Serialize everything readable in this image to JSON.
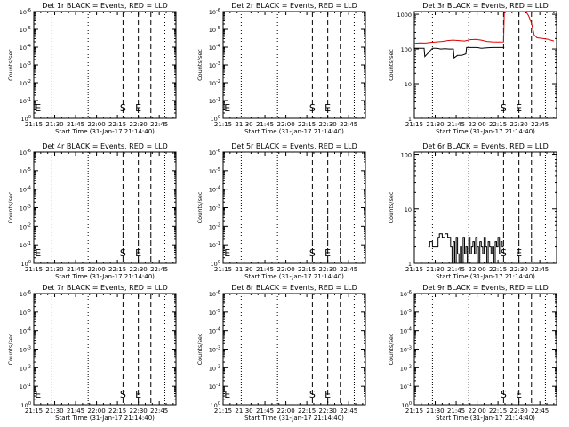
{
  "figure": {
    "background": "#ffffff",
    "axis_color": "#000000",
    "events_color": "#000000",
    "lld_color": "#e00000"
  },
  "chart_data": [
    {
      "type": "line",
      "title": "Det 1r BLACK = Events, RED = LLD",
      "xlabel": "Start Time (31-Jan-17 21:14:40)",
      "ylabel": "Counts/sec",
      "x_ticks": [
        "21:15",
        "21:30",
        "21:45",
        "22:00",
        "22:15",
        "22:30",
        "22:45"
      ],
      "x_tick_minutes": [
        0,
        15,
        30,
        45,
        60,
        75,
        90
      ],
      "xlim": [
        0,
        102
      ],
      "yscale": "log",
      "y_ticks": [
        "10^0",
        "10^-1",
        "10^-2",
        "10^-3",
        "10^-4",
        "10^-5",
        "10^-6"
      ],
      "ylim": [
        1e-06,
        1
      ],
      "y_ticks_inverted": true,
      "markers": [
        {
          "label": "E",
          "x": 0.5
        },
        {
          "label": "S",
          "x": 64
        },
        {
          "label": "E",
          "x": 75
        }
      ],
      "dotted_lines": [
        13,
        39,
        94
      ],
      "dashed_lines": [
        64,
        75,
        84
      ],
      "grid": false,
      "series": []
    },
    {
      "type": "line",
      "title": "Det 2r BLACK = Events, RED = LLD",
      "xlabel": "Start Time (31-Jan-17 21:14:40)",
      "ylabel": "Counts/sec",
      "x_ticks": [
        "21:15",
        "21:30",
        "21:45",
        "22:00",
        "22:15",
        "22:30",
        "22:45"
      ],
      "x_tick_minutes": [
        0,
        15,
        30,
        45,
        60,
        75,
        90
      ],
      "xlim": [
        0,
        102
      ],
      "yscale": "log",
      "y_ticks": [
        "10^0",
        "10^-1",
        "10^-2",
        "10^-3",
        "10^-4",
        "10^-5",
        "10^-6"
      ],
      "ylim": [
        1e-06,
        1
      ],
      "y_ticks_inverted": true,
      "markers": [
        {
          "label": "E",
          "x": 0.5
        },
        {
          "label": "S",
          "x": 64
        },
        {
          "label": "E",
          "x": 75
        }
      ],
      "dotted_lines": [
        13,
        39,
        94
      ],
      "dashed_lines": [
        64,
        75,
        84
      ],
      "grid": false,
      "series": []
    },
    {
      "type": "line",
      "title": "Det 3r BLACK = Events, RED = LLD",
      "xlabel": "Start Time (31-Jan-17 21:14:40)",
      "ylabel": "Counts/sec",
      "x_ticks": [
        "21:15",
        "21:30",
        "21:45",
        "22:00",
        "22:15",
        "22:30",
        "22:45"
      ],
      "x_tick_minutes": [
        0,
        15,
        30,
        45,
        60,
        75,
        90
      ],
      "xlim": [
        0,
        102
      ],
      "yscale": "log",
      "y_ticks": [
        "1",
        "10",
        "100",
        "1000"
      ],
      "y_tick_values": [
        1,
        10,
        100,
        1000
      ],
      "ylim": [
        1,
        1200
      ],
      "markers": [
        {
          "label": "S",
          "x": 64
        },
        {
          "label": "E",
          "x": 75
        }
      ],
      "dotted_lines": [
        13,
        39,
        94
      ],
      "dashed_lines": [
        64,
        75,
        84
      ],
      "grid": false,
      "series": [
        {
          "color": "#000000",
          "x": [
            0,
            7,
            7.5,
            13,
            16,
            19,
            22,
            25,
            28,
            28.5,
            31,
            34,
            36,
            37,
            37.5,
            40,
            42,
            45,
            48,
            52,
            56,
            60,
            64,
            64.5,
            65,
            100
          ],
          "y": [
            105,
            105,
            60,
            105,
            105,
            100,
            102,
            100,
            100,
            55,
            65,
            65,
            70,
            72,
            110,
            110,
            110,
            110,
            105,
            108,
            110,
            110,
            110,
            110,
            null,
            null
          ]
        },
        {
          "color": "#e00000",
          "x": [
            0,
            4,
            8,
            12,
            16,
            20,
            24,
            28,
            32,
            36,
            40,
            44,
            48,
            52,
            56,
            60,
            64,
            64.5,
            65,
            80,
            82,
            84,
            86,
            88,
            92,
            96,
            100
          ],
          "y": [
            145,
            150,
            148,
            155,
            160,
            165,
            175,
            180,
            175,
            170,
            185,
            190,
            180,
            165,
            160,
            158,
            160,
            1200,
            1200,
            1200,
            900,
            550,
            250,
            210,
            200,
            190,
            170
          ]
        }
      ]
    },
    {
      "type": "line",
      "title": "Det 4r BLACK = Events, RED = LLD",
      "xlabel": "Start Time (31-Jan-17 21:14:40)",
      "ylabel": "Counts/sec",
      "x_ticks": [
        "21:15",
        "21:30",
        "21:45",
        "22:00",
        "22:15",
        "22:30",
        "22:45"
      ],
      "x_tick_minutes": [
        0,
        15,
        30,
        45,
        60,
        75,
        90
      ],
      "xlim": [
        0,
        102
      ],
      "yscale": "log",
      "y_ticks": [
        "10^0",
        "10^-1",
        "10^-2",
        "10^-3",
        "10^-4",
        "10^-5",
        "10^-6"
      ],
      "ylim": [
        1e-06,
        1
      ],
      "y_ticks_inverted": true,
      "markers": [
        {
          "label": "E",
          "x": 0.5
        },
        {
          "label": "S",
          "x": 64
        },
        {
          "label": "E",
          "x": 75
        }
      ],
      "dotted_lines": [
        13,
        39,
        94
      ],
      "dashed_lines": [
        64,
        75,
        84
      ],
      "grid": false,
      "series": []
    },
    {
      "type": "line",
      "title": "Det 5r BLACK = Events, RED = LLD",
      "xlabel": "Start Time (31-Jan-17 21:14:40)",
      "ylabel": "Counts/sec",
      "x_ticks": [
        "21:15",
        "21:30",
        "21:45",
        "22:00",
        "22:15",
        "22:30",
        "22:45"
      ],
      "x_tick_minutes": [
        0,
        15,
        30,
        45,
        60,
        75,
        90
      ],
      "xlim": [
        0,
        102
      ],
      "yscale": "log",
      "y_ticks": [
        "10^0",
        "10^-1",
        "10^-2",
        "10^-3",
        "10^-4",
        "10^-5",
        "10^-6"
      ],
      "ylim": [
        1e-06,
        1
      ],
      "y_ticks_inverted": true,
      "markers": [
        {
          "label": "E",
          "x": 0.5
        },
        {
          "label": "S",
          "x": 64
        },
        {
          "label": "E",
          "x": 75
        }
      ],
      "dotted_lines": [
        13,
        39,
        94
      ],
      "dashed_lines": [
        64,
        75,
        84
      ],
      "grid": false,
      "series": []
    },
    {
      "type": "line",
      "title": "Det 6r BLACK = Events, RED = LLD",
      "xlabel": "Start Time (31-Jan-17 21:14:40)",
      "ylabel": "Counts/sec",
      "x_ticks": [
        "21:15",
        "21:30",
        "21:45",
        "22:00",
        "22:15",
        "22:30",
        "22:45"
      ],
      "x_tick_minutes": [
        0,
        15,
        30,
        45,
        60,
        75,
        90
      ],
      "xlim": [
        0,
        102
      ],
      "yscale": "log",
      "y_ticks": [
        "1",
        "10",
        "100"
      ],
      "y_tick_values": [
        1,
        10,
        100
      ],
      "ylim": [
        1,
        110
      ],
      "markers": [
        {
          "label": "S",
          "x": 64
        },
        {
          "label": "E",
          "x": 75
        }
      ],
      "dotted_lines": [
        13,
        39,
        94
      ],
      "dashed_lines": [
        64,
        75,
        84
      ],
      "grid": false,
      "series": [
        {
          "color": "#000000",
          "x": [
            10,
            11,
            11,
            13,
            13,
            17,
            17,
            18,
            18,
            20,
            20,
            22,
            22,
            24,
            24,
            26,
            26,
            27,
            27,
            28,
            28,
            29,
            29,
            30,
            30,
            31,
            31,
            32,
            32,
            33,
            33,
            34,
            34,
            35,
            35,
            36,
            36,
            37,
            37,
            38,
            38,
            39,
            39,
            40,
            40,
            41,
            41,
            42,
            42,
            43,
            43,
            44,
            44,
            45,
            45,
            46,
            46,
            47,
            47,
            48,
            48,
            49,
            49,
            50,
            50,
            51,
            51,
            52,
            52,
            53,
            53,
            54,
            54,
            55,
            55,
            56,
            56,
            57,
            57,
            58,
            58,
            59,
            59,
            60,
            60,
            61,
            61,
            62,
            62,
            63,
            63,
            64
          ],
          "y": [
            2,
            2,
            2.5,
            2.5,
            2,
            2,
            3,
            3,
            3.5,
            3.5,
            3,
            3,
            3.5,
            3.5,
            3,
            3,
            2,
            2,
            1,
            1,
            2.5,
            2.5,
            1,
            1,
            3,
            3,
            1.5,
            1.5,
            1,
            1,
            2,
            2,
            1,
            1,
            3,
            3,
            1.5,
            1.5,
            2,
            2,
            1,
            1,
            3,
            3,
            1.5,
            1.5,
            2,
            2,
            2.5,
            2.5,
            1.5,
            1.5,
            3,
            3,
            2,
            2,
            1,
            1,
            2.5,
            2.5,
            2,
            2,
            1.5,
            1.5,
            3,
            3,
            2,
            2,
            1,
            1,
            2.5,
            2.5,
            2,
            2,
            1.5,
            1.5,
            2,
            2,
            1,
            1,
            2.5,
            2.5,
            2,
            2,
            3,
            3,
            1.5,
            1.5,
            2.5,
            2.5,
            2,
            2
          ]
        }
      ]
    },
    {
      "type": "line",
      "title": "Det 7r BLACK = Events, RED = LLD",
      "xlabel": "Start Time (31-Jan-17 21:14:40)",
      "ylabel": "Counts/sec",
      "x_ticks": [
        "21:15",
        "21:30",
        "21:45",
        "22:00",
        "22:15",
        "22:30",
        "22:45"
      ],
      "x_tick_minutes": [
        0,
        15,
        30,
        45,
        60,
        75,
        90
      ],
      "xlim": [
        0,
        102
      ],
      "yscale": "log",
      "y_ticks": [
        "10^0",
        "10^-1",
        "10^-2",
        "10^-3",
        "10^-4",
        "10^-5",
        "10^-6"
      ],
      "ylim": [
        1e-06,
        1
      ],
      "y_ticks_inverted": true,
      "markers": [
        {
          "label": "E",
          "x": 0.5
        },
        {
          "label": "S",
          "x": 64
        },
        {
          "label": "E",
          "x": 75
        }
      ],
      "dotted_lines": [
        13,
        39,
        94
      ],
      "dashed_lines": [
        64,
        75,
        84
      ],
      "grid": false,
      "series": []
    },
    {
      "type": "line",
      "title": "Det 8r BLACK = Events, RED = LLD",
      "xlabel": "Start Time (31-Jan-17 21:14:40)",
      "ylabel": "Counts/sec",
      "x_ticks": [
        "21:15",
        "21:30",
        "21:45",
        "22:00",
        "22:15",
        "22:30",
        "22:45"
      ],
      "x_tick_minutes": [
        0,
        15,
        30,
        45,
        60,
        75,
        90
      ],
      "xlim": [
        0,
        102
      ],
      "yscale": "log",
      "y_ticks": [
        "10^0",
        "10^-1",
        "10^-2",
        "10^-3",
        "10^-4",
        "10^-5",
        "10^-6"
      ],
      "ylim": [
        1e-06,
        1
      ],
      "y_ticks_inverted": true,
      "markers": [
        {
          "label": "E",
          "x": 0.5
        },
        {
          "label": "S",
          "x": 64
        },
        {
          "label": "E",
          "x": 75
        }
      ],
      "dotted_lines": [
        13,
        39,
        94
      ],
      "dashed_lines": [
        64,
        75,
        84
      ],
      "grid": false,
      "series": []
    },
    {
      "type": "line",
      "title": "Det 9r BLACK = Events, RED = LLD",
      "xlabel": "Start Time (31-Jan-17 21:14:40)",
      "ylabel": "Counts/sec",
      "x_ticks": [
        "21:15",
        "21:30",
        "21:45",
        "22:00",
        "22:15",
        "22:30",
        "22:45"
      ],
      "x_tick_minutes": [
        0,
        15,
        30,
        45,
        60,
        75,
        90
      ],
      "xlim": [
        0,
        102
      ],
      "yscale": "log",
      "y_ticks": [
        "10^0",
        "10^-1",
        "10^-2",
        "10^-3",
        "10^-4",
        "10^-5",
        "10^-6"
      ],
      "ylim": [
        1e-06,
        1
      ],
      "y_ticks_inverted": true,
      "markers": [
        {
          "label": "S",
          "x": 64
        },
        {
          "label": "E",
          "x": 75
        }
      ],
      "dotted_lines": [
        13,
        39,
        94
      ],
      "dashed_lines": [
        64,
        75,
        84
      ],
      "grid": false,
      "series": []
    }
  ]
}
